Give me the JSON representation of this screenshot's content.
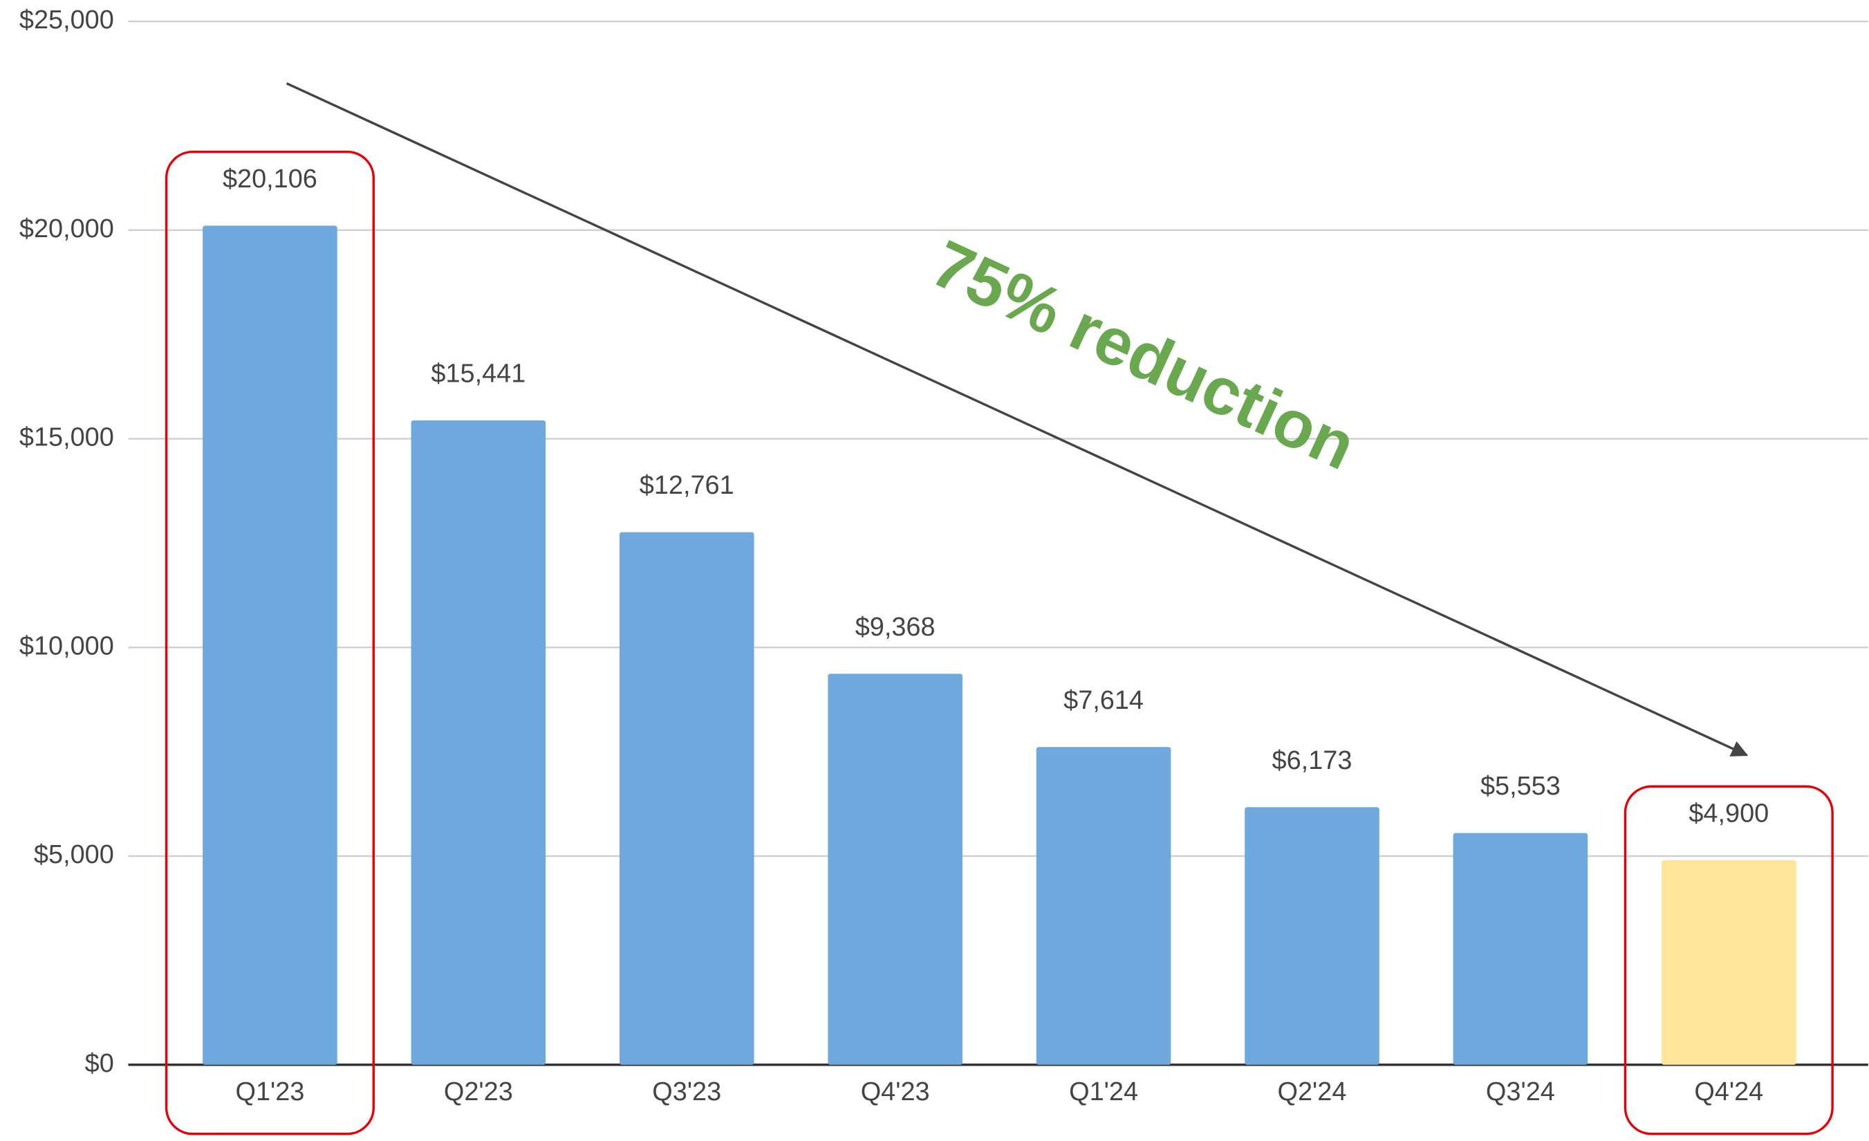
{
  "chart_data": {
    "type": "bar",
    "categories": [
      "Q1'23",
      "Q2'23",
      "Q3'23",
      "Q4'23",
      "Q1'24",
      "Q2'24",
      "Q3'24",
      "Q4'24"
    ],
    "values": [
      20106,
      15441,
      12761,
      9368,
      7614,
      6173,
      5553,
      4900
    ],
    "value_labels": [
      "$20,106",
      "$15,441",
      "$12,761",
      "$9,368",
      "$7,614",
      "$6,173",
      "$5,553",
      "$4,900"
    ],
    "colors": [
      "#6fa8dc",
      "#6fa8dc",
      "#6fa8dc",
      "#6fa8dc",
      "#6fa8dc",
      "#6fa8dc",
      "#6fa8dc",
      "#ffe599"
    ],
    "ylim": [
      0,
      25000
    ],
    "yticks": [
      {
        "value": 0,
        "label": "$0"
      },
      {
        "value": 5000,
        "label": "$5,000"
      },
      {
        "value": 10000,
        "label": "$10,000"
      },
      {
        "value": 15000,
        "label": "$15,000"
      },
      {
        "value": 20000,
        "label": "$20,000"
      },
      {
        "value": 25000,
        "label": "$25,000"
      }
    ],
    "grid": true,
    "annotation": "75% reduction"
  }
}
